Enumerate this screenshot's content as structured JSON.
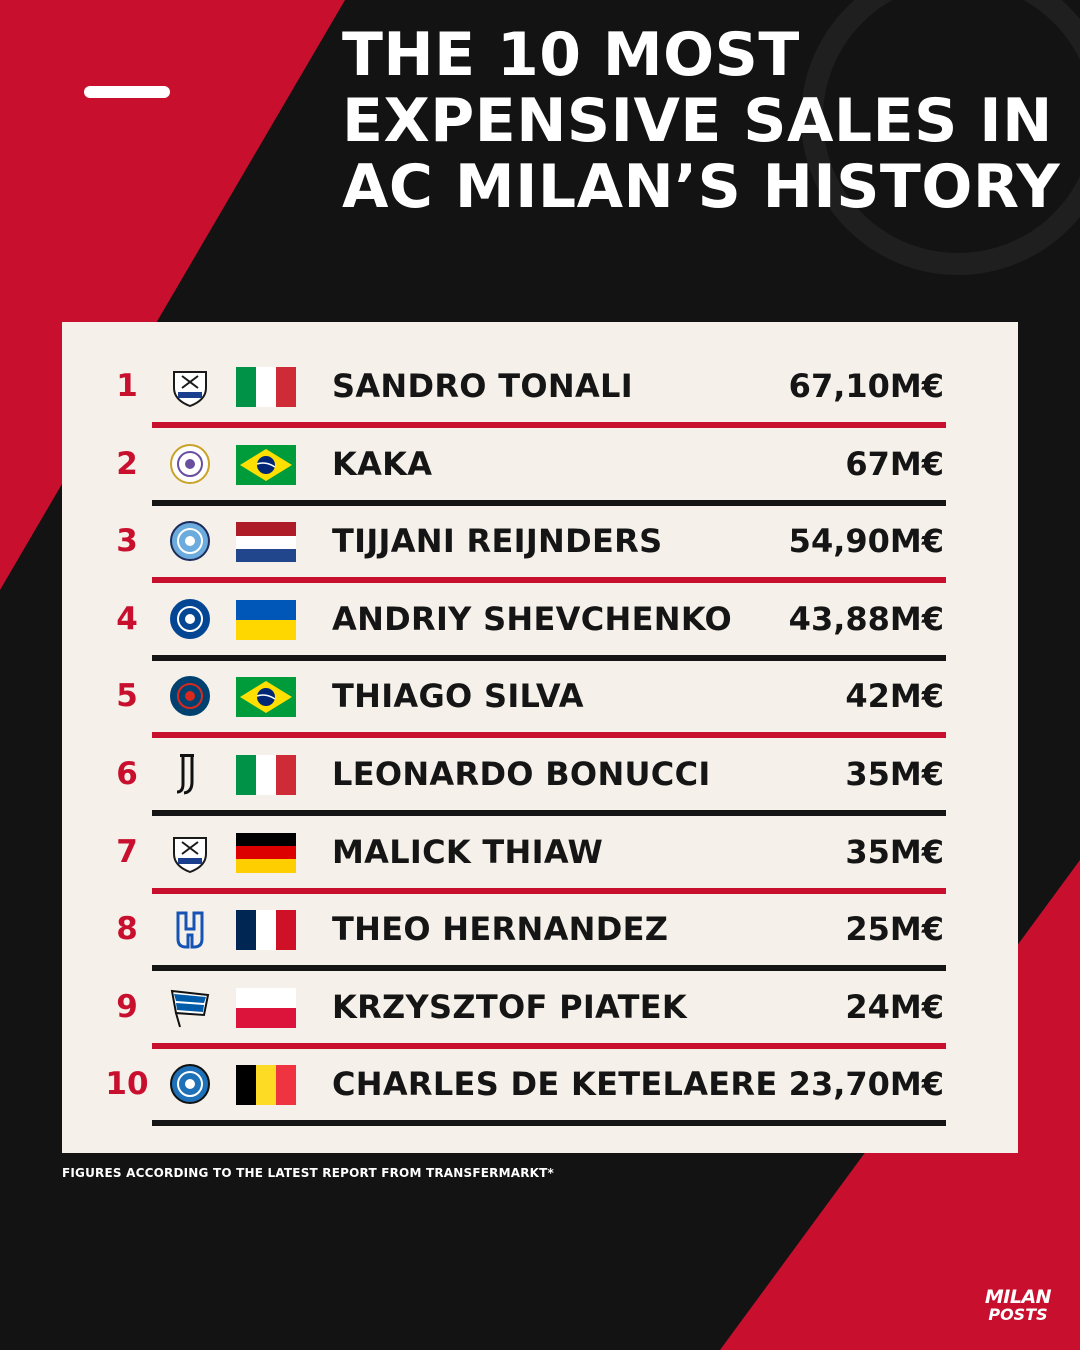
{
  "colors": {
    "background": "#131313",
    "red": "#c8102e",
    "panel": "#f5f1ea",
    "text_dark": "#151515",
    "separator_red": "#c8102e",
    "separator_black": "#151515"
  },
  "title_lines": [
    "THE 10 MOST",
    "EXPENSIVE SALES IN",
    "AC MILAN’S HISTORY"
  ],
  "rows": [
    {
      "rank": "1",
      "name": "SANDRO TONALI",
      "fee": "67,10M€",
      "club_icon": "newcastle-crest-icon",
      "flag": "italy"
    },
    {
      "rank": "2",
      "name": "KAKA",
      "fee": "67M€",
      "club_icon": "real-madrid-crest-icon",
      "flag": "brazil"
    },
    {
      "rank": "3",
      "name": "TIJJANI REIJNDERS",
      "fee": "54,90M€",
      "club_icon": "manchester-city-crest-icon",
      "flag": "netherlands"
    },
    {
      "rank": "4",
      "name": "ANDRIY SHEVCHENKO",
      "fee": "43,88M€",
      "club_icon": "chelsea-crest-icon",
      "flag": "ukraine"
    },
    {
      "rank": "5",
      "name": "THIAGO SILVA",
      "fee": "42M€",
      "club_icon": "psg-crest-icon",
      "flag": "brazil"
    },
    {
      "rank": "6",
      "name": "LEONARDO BONUCCI",
      "fee": "35M€",
      "club_icon": "juventus-crest-icon",
      "flag": "italy"
    },
    {
      "rank": "7",
      "name": "MALICK THIAW",
      "fee": "35M€",
      "club_icon": "newcastle-crest-icon",
      "flag": "germany"
    },
    {
      "rank": "8",
      "name": "THEO HERNANDEZ",
      "fee": "25M€",
      "club_icon": "al-hilal-crest-icon",
      "flag": "france"
    },
    {
      "rank": "9",
      "name": "KRZYSZTOF PIATEK",
      "fee": "24M€",
      "club_icon": "hertha-bsc-crest-icon",
      "flag": "poland"
    },
    {
      "rank": "10",
      "name": "CHARLES DE KETELAERE",
      "fee": "23,70M€",
      "club_icon": "atalanta-crest-icon",
      "flag": "belgium"
    }
  ],
  "footnote": "FIGURES ACCORDING TO THE LATEST REPORT FROM TRANSFERMARKT*",
  "logo": {
    "line1": "MILAN",
    "line2": "POSTS"
  }
}
